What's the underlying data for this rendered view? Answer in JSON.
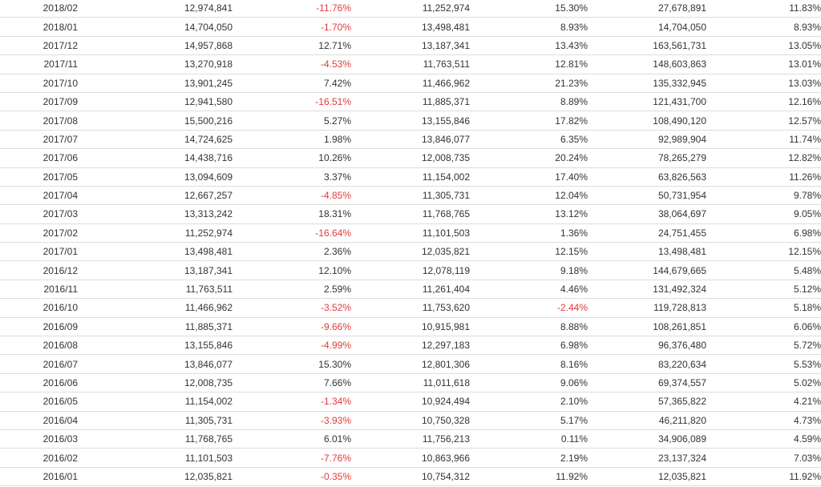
{
  "colors": {
    "negative": "#e33b3b",
    "text": "#333333",
    "border": "#dddddd"
  },
  "table": {
    "rows": [
      [
        "2018/02",
        "12,974,841",
        "-11.76%",
        "11,252,974",
        "15.30%",
        "27,678,891",
        "11.83%"
      ],
      [
        "2018/01",
        "14,704,050",
        "-1.70%",
        "13,498,481",
        "8.93%",
        "14,704,050",
        "8.93%"
      ],
      [
        "2017/12",
        "14,957,868",
        "12.71%",
        "13,187,341",
        "13.43%",
        "163,561,731",
        "13.05%"
      ],
      [
        "2017/11",
        "13,270,918",
        "-4.53%",
        "11,763,511",
        "12.81%",
        "148,603,863",
        "13.01%"
      ],
      [
        "2017/10",
        "13,901,245",
        "7.42%",
        "11,466,962",
        "21.23%",
        "135,332,945",
        "13.03%"
      ],
      [
        "2017/09",
        "12,941,580",
        "-16.51%",
        "11,885,371",
        "8.89%",
        "121,431,700",
        "12.16%"
      ],
      [
        "2017/08",
        "15,500,216",
        "5.27%",
        "13,155,846",
        "17.82%",
        "108,490,120",
        "12.57%"
      ],
      [
        "2017/07",
        "14,724,625",
        "1.98%",
        "13,846,077",
        "6.35%",
        "92,989,904",
        "11.74%"
      ],
      [
        "2017/06",
        "14,438,716",
        "10.26%",
        "12,008,735",
        "20.24%",
        "78,265,279",
        "12.82%"
      ],
      [
        "2017/05",
        "13,094,609",
        "3.37%",
        "11,154,002",
        "17.40%",
        "63,826,563",
        "11.26%"
      ],
      [
        "2017/04",
        "12,667,257",
        "-4.85%",
        "11,305,731",
        "12.04%",
        "50,731,954",
        "9.78%"
      ],
      [
        "2017/03",
        "13,313,242",
        "18.31%",
        "11,768,765",
        "13.12%",
        "38,064,697",
        "9.05%"
      ],
      [
        "2017/02",
        "11,252,974",
        "-16.64%",
        "11,101,503",
        "1.36%",
        "24,751,455",
        "6.98%"
      ],
      [
        "2017/01",
        "13,498,481",
        "2.36%",
        "12,035,821",
        "12.15%",
        "13,498,481",
        "12.15%"
      ],
      [
        "2016/12",
        "13,187,341",
        "12.10%",
        "12,078,119",
        "9.18%",
        "144,679,665",
        "5.48%"
      ],
      [
        "2016/11",
        "11,763,511",
        "2.59%",
        "11,261,404",
        "4.46%",
        "131,492,324",
        "5.12%"
      ],
      [
        "2016/10",
        "11,466,962",
        "-3.52%",
        "11,753,620",
        "-2.44%",
        "119,728,813",
        "5.18%"
      ],
      [
        "2016/09",
        "11,885,371",
        "-9.66%",
        "10,915,981",
        "8.88%",
        "108,261,851",
        "6.06%"
      ],
      [
        "2016/08",
        "13,155,846",
        "-4.99%",
        "12,297,183",
        "6.98%",
        "96,376,480",
        "5.72%"
      ],
      [
        "2016/07",
        "13,846,077",
        "15.30%",
        "12,801,306",
        "8.16%",
        "83,220,634",
        "5.53%"
      ],
      [
        "2016/06",
        "12,008,735",
        "7.66%",
        "11,011,618",
        "9.06%",
        "69,374,557",
        "5.02%"
      ],
      [
        "2016/05",
        "11,154,002",
        "-1.34%",
        "10,924,494",
        "2.10%",
        "57,365,822",
        "4.21%"
      ],
      [
        "2016/04",
        "11,305,731",
        "-3.93%",
        "10,750,328",
        "5.17%",
        "46,211,820",
        "4.73%"
      ],
      [
        "2016/03",
        "11,768,765",
        "6.01%",
        "11,756,213",
        "0.11%",
        "34,906,089",
        "4.59%"
      ],
      [
        "2016/02",
        "11,101,503",
        "-7.76%",
        "10,863,966",
        "2.19%",
        "23,137,324",
        "7.03%"
      ],
      [
        "2016/01",
        "12,035,821",
        "-0.35%",
        "10,754,312",
        "11.92%",
        "12,035,821",
        "11.92%"
      ]
    ]
  }
}
